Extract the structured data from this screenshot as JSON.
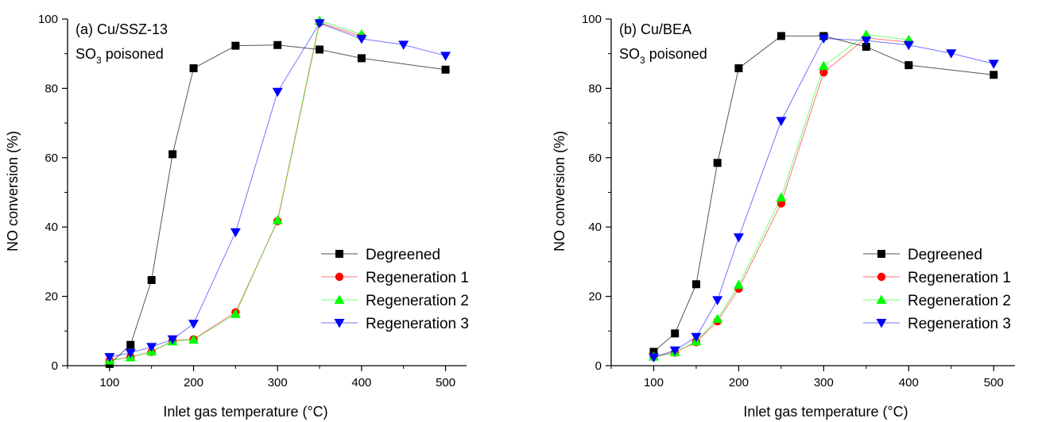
{
  "chart_data": [
    {
      "type": "line",
      "title": "(a) Cu/SSZ-13",
      "subtitle": "SO3 poisoned",
      "xlabel": "Inlet gas temperature (°C)",
      "ylabel": "NO conversion (%)",
      "xlim": [
        50,
        525
      ],
      "ylim": [
        0,
        100
      ],
      "x_ticks": [
        100,
        200,
        300,
        400,
        500
      ],
      "y_ticks": [
        0,
        20,
        40,
        60,
        80,
        100
      ],
      "grid": false,
      "legend_position": "bottom-right",
      "series": [
        {
          "name": "Degreened",
          "color": "#000000",
          "marker": "square",
          "x": [
            100,
            125,
            150,
            175,
            200,
            250,
            300,
            350,
            400,
            500
          ],
          "y": [
            0.5,
            6,
            24.7,
            61,
            85.8,
            92.3,
            92.5,
            91.2,
            88.7,
            85.4
          ]
        },
        {
          "name": "Regeneration 1",
          "color": "#ff0000",
          "marker": "circle",
          "x": [
            100,
            125,
            150,
            175,
            200,
            250,
            300,
            350,
            400
          ],
          "y": [
            1.5,
            2.5,
            4,
            7.2,
            7.6,
            15.4,
            41.7,
            99,
            95
          ]
        },
        {
          "name": "Regeneration 2",
          "color": "#00ff00",
          "marker": "triangle-up",
          "x": [
            100,
            125,
            150,
            175,
            200,
            250,
            300,
            350,
            400
          ],
          "y": [
            1.5,
            2.4,
            4.1,
            7,
            7.5,
            14.9,
            42,
            99.5,
            95.6
          ]
        },
        {
          "name": "Regeneration 3",
          "color": "#0000ff",
          "marker": "triangle-down",
          "x": [
            100,
            125,
            150,
            175,
            200,
            250,
            300,
            350,
            400,
            450,
            500
          ],
          "y": [
            2.5,
            3.7,
            5.4,
            7.6,
            12.1,
            38.5,
            79,
            98.8,
            94.3,
            92.6,
            89.4
          ]
        }
      ]
    },
    {
      "type": "line",
      "title": "(b) Cu/BEA",
      "subtitle": "SO3 poisoned",
      "xlabel": "Inlet gas temperature (°C)",
      "ylabel": "NO conversion (%)",
      "xlim": [
        50,
        525
      ],
      "ylim": [
        0,
        100
      ],
      "x_ticks": [
        100,
        200,
        300,
        400,
        500
      ],
      "y_ticks": [
        0,
        20,
        40,
        60,
        80,
        100
      ],
      "grid": false,
      "legend_position": "bottom-right",
      "series": [
        {
          "name": "Degreened",
          "color": "#000000",
          "marker": "square",
          "x": [
            100,
            125,
            150,
            175,
            200,
            250,
            300,
            350,
            400,
            500
          ],
          "y": [
            4,
            9.3,
            23.5,
            58.5,
            85.8,
            95.1,
            95.1,
            92,
            86.7,
            83.9
          ]
        },
        {
          "name": "Regeneration 1",
          "color": "#ff0000",
          "marker": "circle",
          "x": [
            100,
            125,
            150,
            175,
            200,
            250,
            300,
            350,
            400
          ],
          "y": [
            2.5,
            3.8,
            6.8,
            12.8,
            22.2,
            46.8,
            84.6,
            94.6,
            93.3
          ]
        },
        {
          "name": "Regeneration 2",
          "color": "#00ff00",
          "marker": "triangle-up",
          "x": [
            100,
            125,
            150,
            175,
            200,
            250,
            300,
            350,
            400
          ],
          "y": [
            2.6,
            3.9,
            7,
            13.5,
            23.3,
            48.5,
            86.5,
            95.5,
            94
          ]
        },
        {
          "name": "Regeneration 3",
          "color": "#0000ff",
          "marker": "triangle-down",
          "x": [
            100,
            125,
            150,
            175,
            200,
            250,
            300,
            350,
            400,
            450,
            500
          ],
          "y": [
            2.4,
            4.4,
            8.3,
            18.9,
            37,
            70.6,
            94.4,
            93.8,
            92.5,
            90.1,
            87.1
          ]
        }
      ]
    }
  ]
}
